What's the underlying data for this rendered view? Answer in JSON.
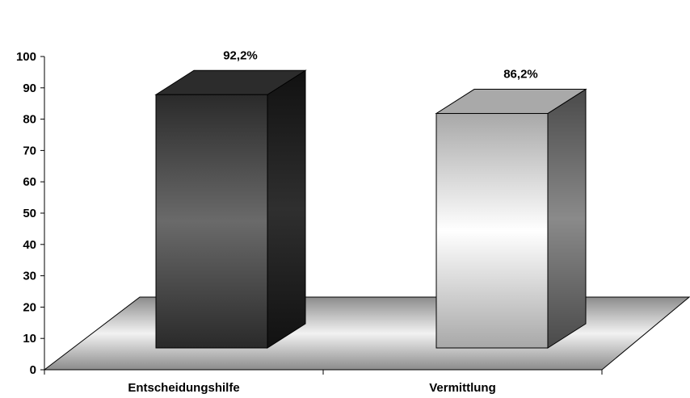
{
  "chart_data": {
    "type": "bar",
    "categories": [
      "Entscheidungshilfe",
      "Vermittlung"
    ],
    "values": [
      92.2,
      86.2
    ],
    "data_labels": [
      "92,2%",
      "86,2%"
    ],
    "y_ticks": [
      "0",
      "10",
      "20",
      "30",
      "40",
      "50",
      "60",
      "70",
      "80",
      "90",
      "100"
    ],
    "ylim": [
      0,
      100
    ],
    "grid": false,
    "legend": "none",
    "style": "3d-column",
    "colors": {
      "bar_dark": "#3a3a3a",
      "bar_light": "#e6e6e6",
      "floor": "#9a9a9a"
    }
  }
}
